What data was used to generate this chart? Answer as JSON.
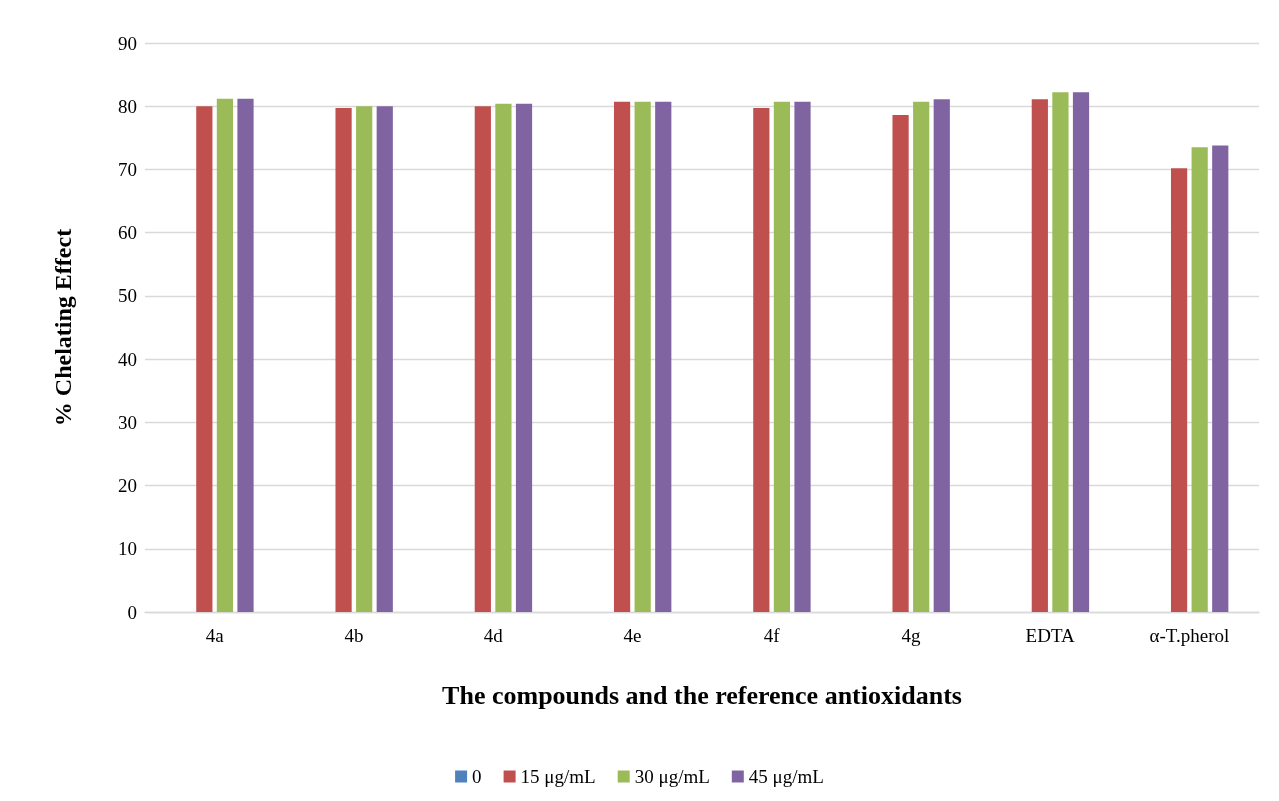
{
  "chart_data": {
    "type": "bar",
    "xlabel": "The compounds and the reference antioxidants",
    "ylabel": "% Chelating Effect",
    "categories": [
      "4a",
      "4b",
      "4d",
      "4e",
      "4f",
      "4g",
      "EDTA",
      "α-T.pherol"
    ],
    "series": [
      {
        "name": "0",
        "color": "#4f81bd",
        "values": [
          0,
          0,
          0,
          0,
          0,
          0,
          0,
          0
        ]
      },
      {
        "name": "15 μg/mL",
        "color": "#c0504d",
        "values": [
          80.0,
          79.7,
          80.0,
          80.7,
          79.7,
          78.6,
          81.1,
          70.2
        ]
      },
      {
        "name": "30 μg/mL",
        "color": "#9bbb59",
        "values": [
          81.2,
          80.0,
          80.4,
          80.7,
          80.7,
          80.7,
          82.2,
          73.5
        ]
      },
      {
        "name": "45 μg/mL",
        "color": "#8064a2",
        "values": [
          81.2,
          80.0,
          80.4,
          80.7,
          80.7,
          81.1,
          82.2,
          73.8
        ]
      }
    ],
    "ylim": [
      0,
      90
    ],
    "yticks": [
      0,
      10,
      20,
      30,
      40,
      50,
      60,
      70,
      80,
      90
    ],
    "grid": "y",
    "legend": "bottom"
  }
}
